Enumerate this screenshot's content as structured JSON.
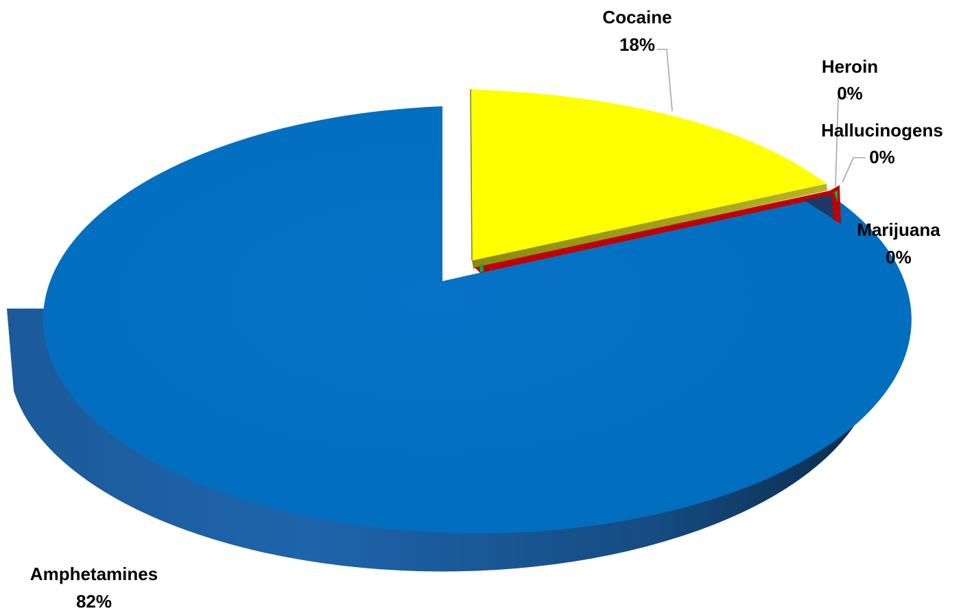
{
  "chart_data": {
    "type": "pie",
    "style": "3d-exploded",
    "title": "",
    "slices": [
      {
        "label": "Amphetamines",
        "value": 82,
        "display": "82%",
        "color": "#0070C0"
      },
      {
        "label": "Cocaine",
        "value": 18,
        "display": "18%",
        "color": "#FFFF00"
      },
      {
        "label": "Heroin",
        "value": 0,
        "display": "0%",
        "color": "#203864"
      },
      {
        "label": "Hallucinogens",
        "value": 0,
        "display": "0%",
        "color": "#00B050"
      },
      {
        "label": "Marijuana",
        "value": 0,
        "display": "0%",
        "color": "#C00000"
      }
    ]
  }
}
